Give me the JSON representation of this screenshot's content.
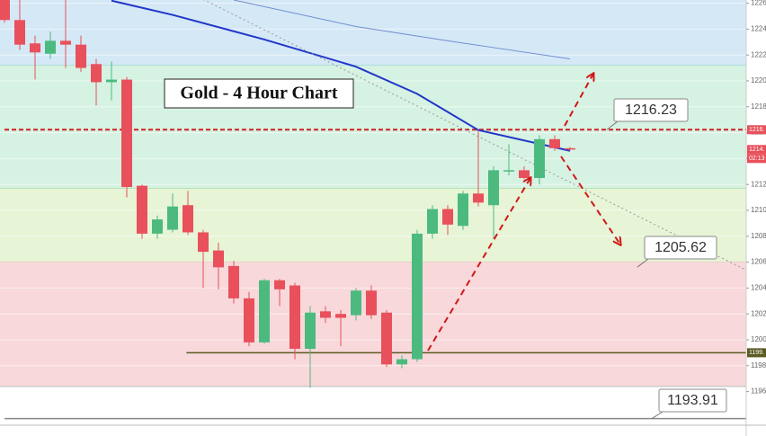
{
  "chart_data": {
    "type": "candlestick",
    "title": "Gold - 4 Hour Chart",
    "up_color": "#4cba7f",
    "down_color": "#e8505b",
    "open": [
      1226.3,
      1224.7,
      1222.9,
      1222.1,
      1223.1,
      1222.8,
      1221.3,
      1219.9,
      1220.1,
      1211.9,
      1208.2,
      1208.5,
      1210.4,
      1208.3,
      1206.9,
      1205.7,
      1203.2,
      1199.8,
      1204.6,
      1204.2,
      1199.3,
      1202.2,
      1202.0,
      1201.9,
      1203.8,
      1202.1,
      1198.1,
      1198.5,
      1208.2,
      1210.1,
      1208.8,
      1211.3,
      1210.4,
      1213.0,
      1213.1,
      1212.5,
      1215.5,
      1214.8
    ],
    "high": [
      1226.3,
      1226.3,
      1223.5,
      1223.8,
      1226.3,
      1223.5,
      1221.7,
      1221.5,
      1220.3,
      1212.0,
      1209.6,
      1211.3,
      1211.5,
      1208.5,
      1207.5,
      1206.1,
      1203.7,
      1204.7,
      1204.7,
      1204.4,
      1202.6,
      1202.6,
      1202.3,
      1204.0,
      1204.2,
      1202.3,
      1198.8,
      1208.5,
      1210.4,
      1210.4,
      1211.5,
      1216.2,
      1213.4,
      1215.1,
      1213.4,
      1215.8,
      1215.8,
      1214.9
    ],
    "low": [
      1224.5,
      1222.4,
      1220.1,
      1221.7,
      1221.0,
      1220.7,
      1218.1,
      1218.5,
      1211.0,
      1207.8,
      1207.8,
      1208.3,
      1208.1,
      1204.0,
      1203.9,
      1202.8,
      1199.5,
      1199.7,
      1202.6,
      1198.5,
      1196.3,
      1201.3,
      1199.5,
      1201.5,
      1201.6,
      1197.9,
      1197.8,
      1198.3,
      1207.8,
      1208.1,
      1208.5,
      1210.3,
      1207.8,
      1212.7,
      1212.4,
      1212.0,
      1214.6,
      1214.6
    ],
    "close": [
      1224.7,
      1222.8,
      1222.2,
      1223.1,
      1222.8,
      1221.0,
      1219.9,
      1220.1,
      1211.8,
      1208.2,
      1209.3,
      1210.3,
      1208.3,
      1206.8,
      1205.6,
      1203.2,
      1199.8,
      1204.6,
      1203.9,
      1199.3,
      1202.1,
      1201.7,
      1201.7,
      1203.8,
      1201.9,
      1198.1,
      1198.5,
      1208.2,
      1210.1,
      1208.9,
      1211.3,
      1210.6,
      1213.1,
      1213.1,
      1212.5,
      1215.5,
      1214.8,
      1214.7
    ],
    "ylim": [
      1193.61,
      1226.25
    ],
    "yticks": [
      1196,
      1198,
      1200,
      1202,
      1204,
      1206,
      1208,
      1210,
      1212,
      1214,
      1216,
      1218,
      1220,
      1222,
      1224,
      1226
    ],
    "grid": true,
    "zones": [
      {
        "from": 1221.2,
        "to": 1226.25,
        "color": "#d5e8f6",
        "edge": "#7fd0c8"
      },
      {
        "from": 1211.7,
        "to": 1221.2,
        "color": "#d6f2e2",
        "edge": "#8fd49a"
      },
      {
        "from": 1206.0,
        "to": 1211.7,
        "color": "#e7f4d6",
        "edge": "#c9665a"
      },
      {
        "from": 1196.4,
        "to": 1206.0,
        "color": "#f8d8da",
        "edge": "#bbbbbb"
      }
    ],
    "overlays": [
      {
        "color": "#2137c9",
        "width": 2,
        "x": [
          7,
          11,
          17,
          23,
          27,
          31,
          37
        ],
        "values": [
          1226.2,
          1225.1,
          1223.2,
          1221.1,
          1219.0,
          1216.2,
          1214.6
        ]
      },
      {
        "color": "#6f8fd0",
        "width": 1,
        "x": [
          15,
          23,
          29,
          33,
          37
        ],
        "values": [
          1226.25,
          1224.2,
          1223.1,
          1222.4,
          1221.7
        ]
      },
      {
        "color": "#999999",
        "width": 1,
        "dash": true,
        "x": [
          13,
          48.5
        ],
        "values": [
          1226.3,
          1205.4
        ]
      }
    ],
    "levels": [
      {
        "value": 1216.23,
        "color": "#d02020",
        "dash": true,
        "from": 0
      },
      {
        "value": 1199.0,
        "color": "#5b5a20",
        "dash": false,
        "from": 11.9
      },
      {
        "value": 1193.91,
        "color": "#888888",
        "dash": false,
        "from": 0
      }
    ],
    "annotations": [
      1216.23,
      1205.62,
      1193.91
    ],
    "price_tags": [
      {
        "value": 1216.23,
        "label": "1216.",
        "color": "#e8505b"
      },
      {
        "value": 1214.7,
        "label": "1214.",
        "color": "#e8505b"
      },
      {
        "value": 1199.0,
        "label": "1199.",
        "color": "#5b5a20"
      }
    ],
    "countdown": "02:13"
  }
}
